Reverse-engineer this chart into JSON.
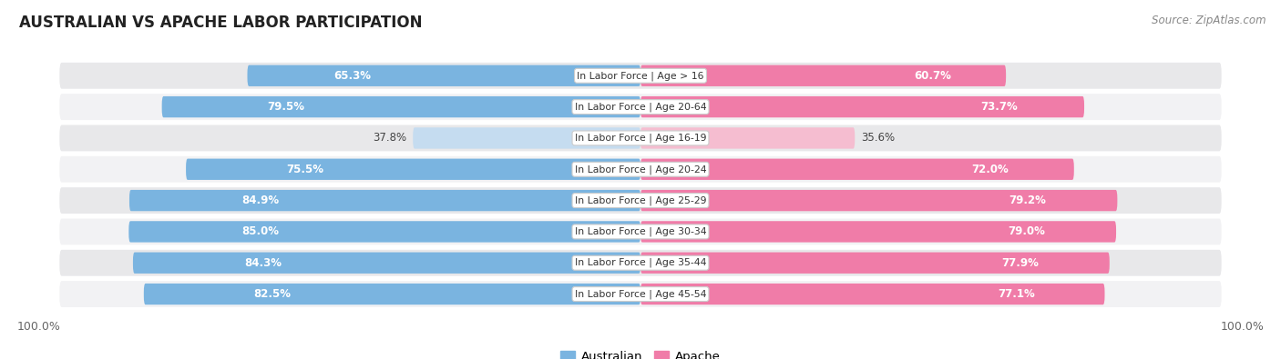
{
  "title": "AUSTRALIAN VS APACHE LABOR PARTICIPATION",
  "source": "Source: ZipAtlas.com",
  "categories": [
    "In Labor Force | Age > 16",
    "In Labor Force | Age 20-64",
    "In Labor Force | Age 16-19",
    "In Labor Force | Age 20-24",
    "In Labor Force | Age 25-29",
    "In Labor Force | Age 30-34",
    "In Labor Force | Age 35-44",
    "In Labor Force | Age 45-54"
  ],
  "australian_values": [
    65.3,
    79.5,
    37.8,
    75.5,
    84.9,
    85.0,
    84.3,
    82.5
  ],
  "apache_values": [
    60.7,
    73.7,
    35.6,
    72.0,
    79.2,
    79.0,
    77.9,
    77.1
  ],
  "aus_color": "#7ab4e0",
  "aus_color_light": "#c5dcf0",
  "apa_color": "#f07ca8",
  "apa_color_light": "#f5bdd0",
  "row_bg_odd": "#e8e8ea",
  "row_bg_even": "#f2f2f4",
  "bar_height": 0.68,
  "label_fontsize": 8.5,
  "cat_fontsize": 7.8,
  "title_fontsize": 12,
  "max_value": 100.0,
  "legend_labels": [
    "Australian",
    "Apache"
  ],
  "x_tick_label": "100.0%"
}
